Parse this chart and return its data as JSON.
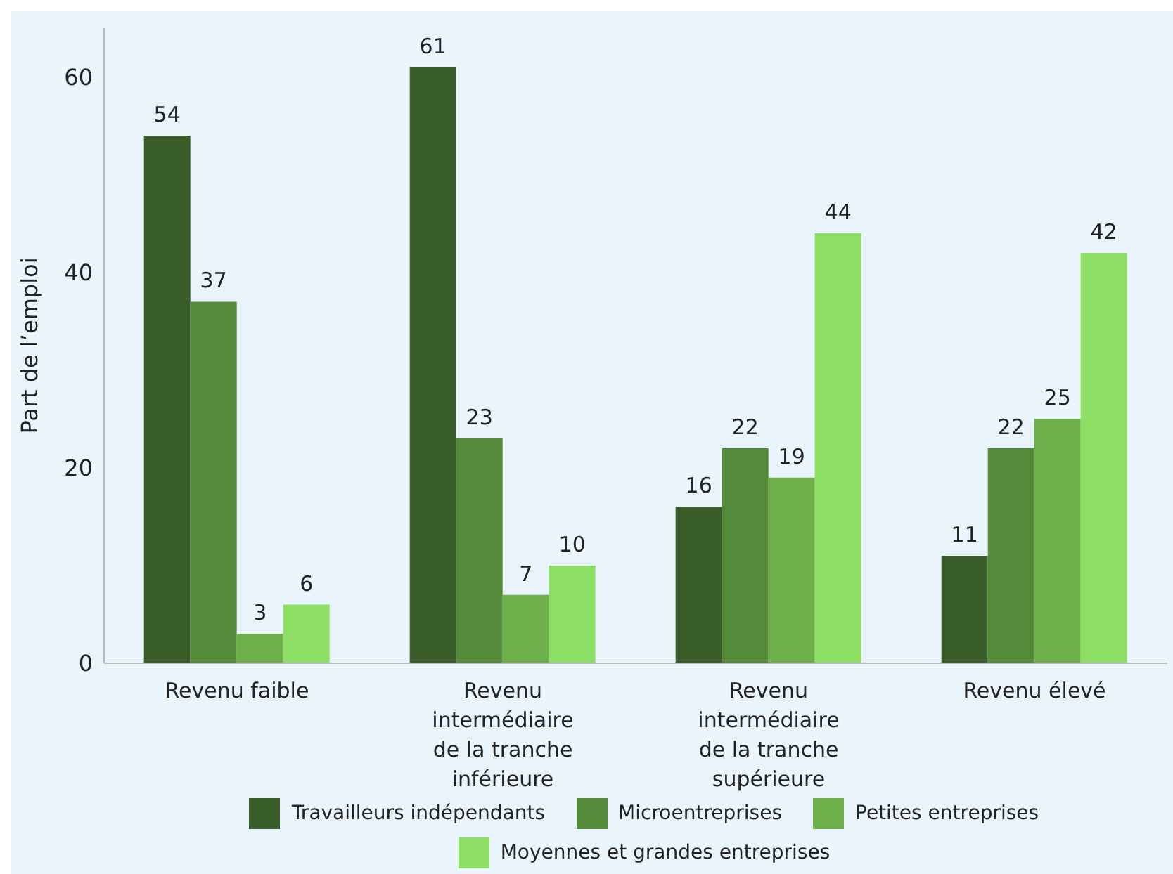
{
  "chart_data": {
    "type": "bar",
    "ylabel": "Part de l’emploi",
    "categories": [
      "Revenu faible",
      "Revenu intermédiaire de la tranche inférieure",
      "Revenu intermédiaire de la tranche supérieure",
      "Revenu élevé"
    ],
    "series": [
      {
        "name": "Travailleurs indépendants",
        "color": "#3a5e2a",
        "values": [
          54,
          61,
          16,
          11
        ]
      },
      {
        "name": "Microentreprises",
        "color": "#548a3a",
        "values": [
          37,
          23,
          22,
          22
        ]
      },
      {
        "name": "Petites entreprises",
        "color": "#6db04a",
        "values": [
          3,
          7,
          19,
          25
        ]
      },
      {
        "name": "Moyennes et grandes entreprises",
        "color": "#8ddf63",
        "values": [
          6,
          10,
          44,
          42
        ]
      }
    ],
    "ylim": [
      0,
      65
    ],
    "yticks": [
      0,
      20,
      40,
      60
    ],
    "grid": false,
    "legend": "bottom",
    "data_labels": true
  }
}
